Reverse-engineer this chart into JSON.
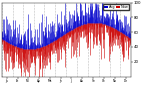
{
  "background_color": "#ffffff",
  "plot_bg_color": "#ffffff",
  "bar_color_above": "#0000cc",
  "bar_color_below": "#cc0000",
  "grid_color": "#aaaaaa",
  "ylim": [
    0,
    100
  ],
  "ytick_values": [
    20,
    40,
    60,
    80,
    100
  ],
  "num_points": 365,
  "seed": 42,
  "legend_blue_label": "Avg",
  "legend_red_label": "Now"
}
